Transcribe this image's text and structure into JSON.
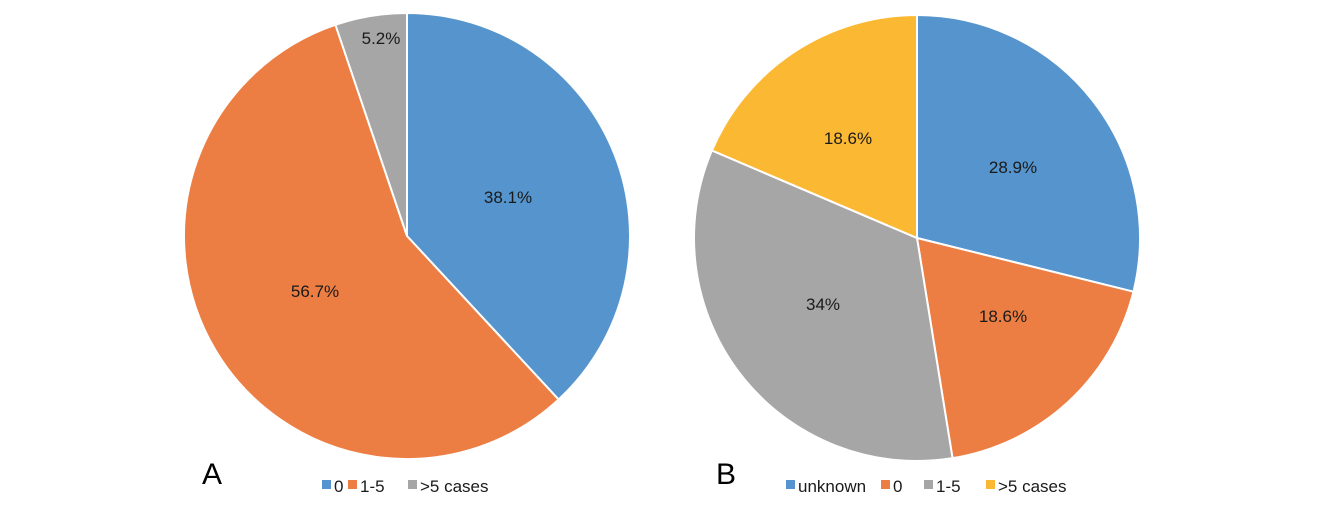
{
  "chart_data": [
    {
      "type": "pie",
      "panel": "A",
      "slices": [
        {
          "label": "0",
          "value": 38.1,
          "display": "38.1%",
          "color": "#5594cc"
        },
        {
          "label": "1-5",
          "value": 56.7,
          "display": "56.7%",
          "color": "#ec7e43"
        },
        {
          "label": ">5 cases",
          "value": 5.2,
          "display": "5.2%",
          "color": "#a6a6a6"
        }
      ],
      "legend": [
        "0",
        "1-5",
        ">5 cases"
      ],
      "legend_position": "bottom"
    },
    {
      "type": "pie",
      "panel": "B",
      "slices": [
        {
          "label": "unknown",
          "value": 28.9,
          "display": "28.9%",
          "color": "#5594cc"
        },
        {
          "label": "0",
          "value": 18.6,
          "display": "18.6%",
          "color": "#ec7e43"
        },
        {
          "label": "1-5",
          "value": 34,
          "display": "34%",
          "color": "#a6a6a6"
        },
        {
          "label": ">5 cases",
          "value": 18.6,
          "display": "18.6%",
          "color": "#fbb933"
        }
      ],
      "legend": [
        "unknown",
        "0",
        "1-5",
        ">5 cases"
      ],
      "legend_position": "bottom"
    }
  ]
}
